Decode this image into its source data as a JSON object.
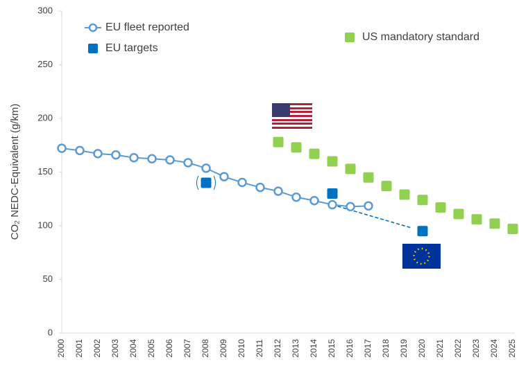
{
  "chart_data": {
    "type": "line",
    "y_label": "CO₂ NEDC-Equivalent (g/km)",
    "categories": [
      "2000",
      "2001",
      "2002",
      "2003",
      "2004",
      "2005",
      "2006",
      "2007",
      "2008",
      "2009",
      "2010",
      "2011",
      "2012",
      "2013",
      "2014",
      "2015",
      "2016",
      "2017",
      "2018",
      "2019",
      "2020",
      "2021",
      "2022",
      "2023",
      "2024",
      "2025"
    ],
    "series": [
      {
        "name": "EU fleet reported",
        "color": "#5b9bd5",
        "marker": "circle",
        "line": true,
        "values": [
          172.2,
          170.1,
          167.2,
          166.0,
          163.4,
          162.4,
          161.3,
          158.7,
          153.6,
          145.7,
          140.3,
          135.7,
          132.2,
          126.6,
          123.4,
          119.6,
          117.8,
          118.5,
          null,
          null,
          null,
          null,
          null,
          null,
          null,
          null
        ]
      },
      {
        "name": "EU targets",
        "color": "#0070c0",
        "marker": "square",
        "line": false,
        "values": [
          null,
          null,
          null,
          null,
          null,
          null,
          null,
          null,
          140,
          null,
          null,
          null,
          null,
          null,
          null,
          130,
          null,
          null,
          null,
          null,
          95,
          null,
          null,
          null,
          null,
          null
        ]
      },
      {
        "name": "US mandatory standard",
        "color": "#92d050",
        "marker": "square",
        "line": false,
        "values": [
          null,
          null,
          null,
          null,
          null,
          null,
          null,
          null,
          null,
          null,
          null,
          null,
          178,
          173,
          167,
          160,
          153,
          145,
          137,
          129,
          124,
          117,
          111,
          106,
          102,
          97
        ]
      }
    ],
    "ylim": [
      0,
      300
    ],
    "yticks": [
      0,
      50,
      100,
      150,
      200,
      250,
      300
    ],
    "grid": false
  }
}
